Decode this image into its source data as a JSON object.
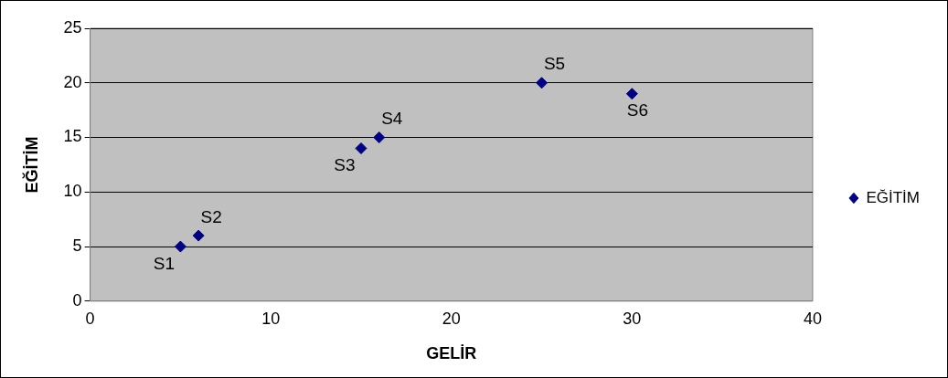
{
  "chart_data": {
    "type": "scatter",
    "xlabel": "GELİR",
    "ylabel": "EĞİTİM",
    "x": [
      5,
      6,
      15,
      16,
      25,
      30
    ],
    "series": [
      {
        "name": "EĞİTİM",
        "color": "#000080",
        "values": [
          5,
          6,
          14,
          15,
          20,
          19
        ]
      }
    ],
    "xlim": [
      0,
      40
    ],
    "xticks": [
      0,
      10,
      20,
      30,
      40
    ],
    "ylim": [
      0,
      25
    ],
    "yticks": [
      0,
      5,
      10,
      15,
      20,
      25
    ],
    "grid": "y",
    "legend": "right",
    "marker": "diamond",
    "annotations": [
      {
        "text": "S1",
        "x": 5,
        "y": 5
      },
      {
        "text": "S2",
        "x": 6,
        "y": 6
      },
      {
        "text": "S3",
        "x": 15,
        "y": 14
      },
      {
        "text": "S4",
        "x": 16,
        "y": 15
      },
      {
        "text": "S5",
        "x": 25,
        "y": 20
      },
      {
        "text": "S6",
        "x": 30,
        "y": 19
      }
    ]
  }
}
